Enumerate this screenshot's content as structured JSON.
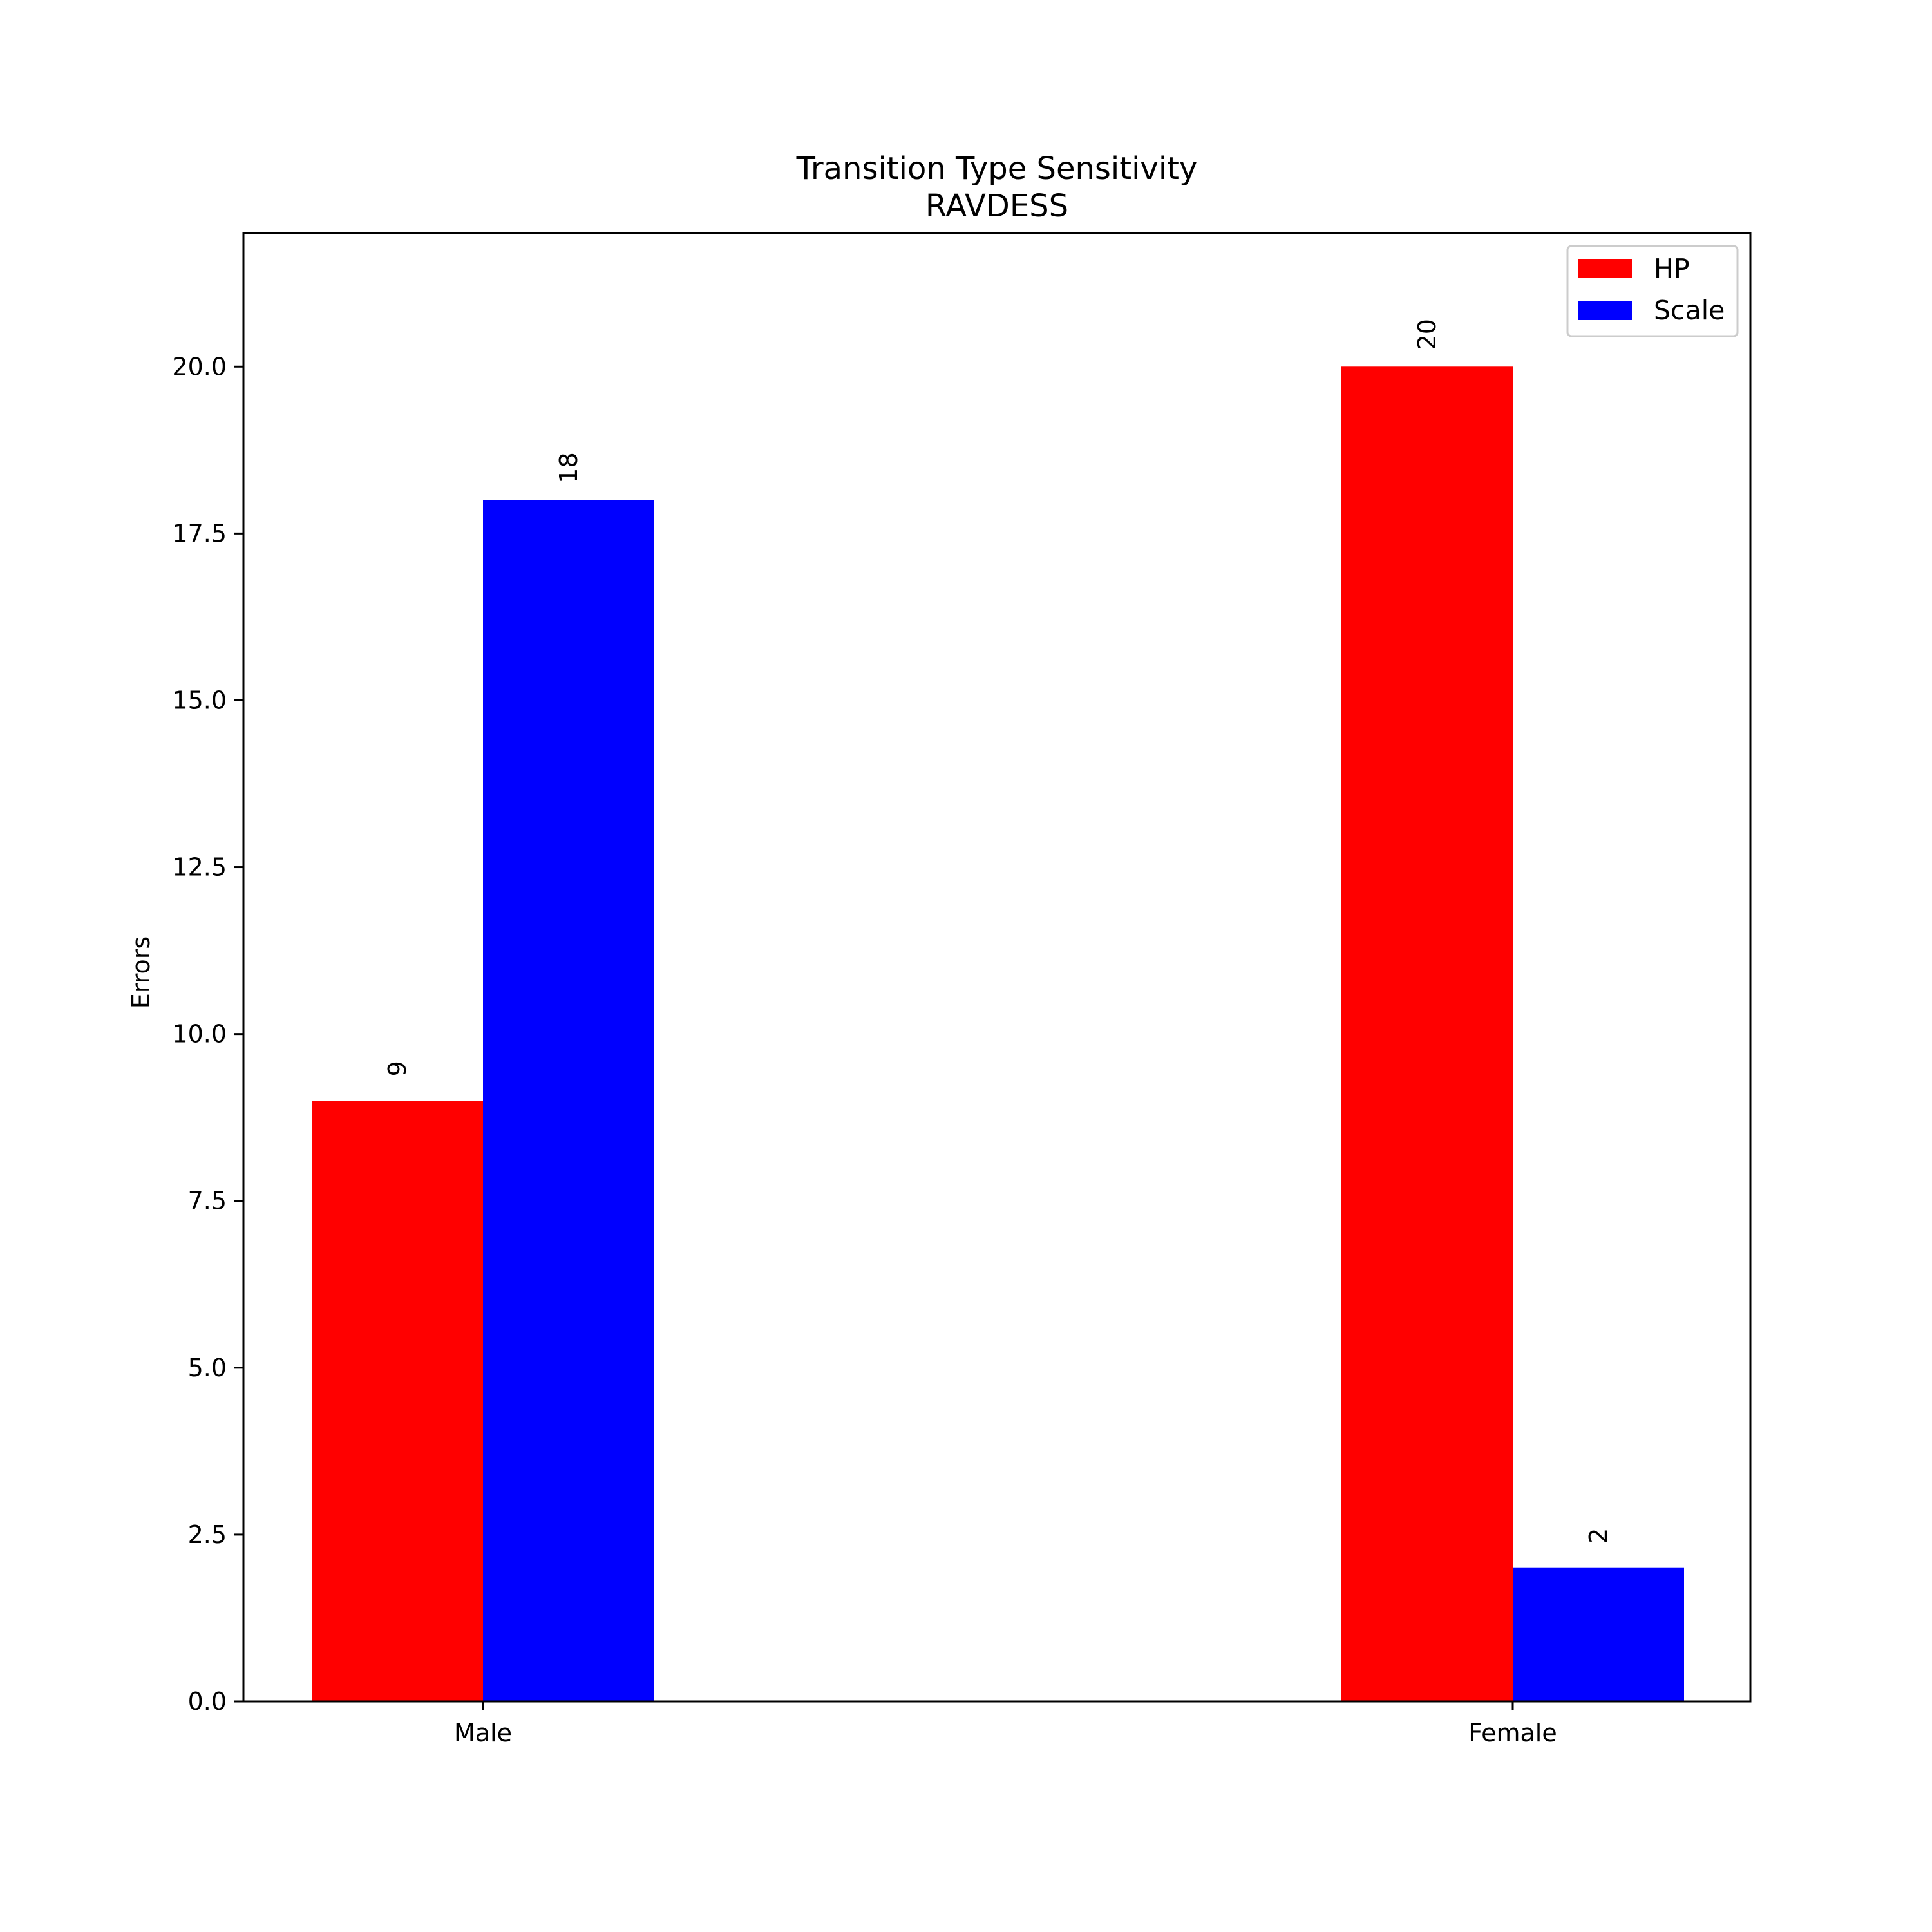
{
  "chart_data": {
    "type": "bar",
    "title": "Transition Type Sensitivity",
    "subtitle": "RAVDESS",
    "xlabel": "",
    "ylabel": "Errors",
    "categories": [
      "Male",
      "Female"
    ],
    "ylim": [
      0,
      22
    ],
    "yticks": [
      0,
      2.5,
      5,
      7.5,
      10,
      12.5,
      15,
      17.5,
      20
    ],
    "ytick_labels": [
      "0.0",
      "2.5",
      "5.0",
      "7.5",
      "10.0",
      "12.5",
      "15.0",
      "17.5",
      "20.0"
    ],
    "grid": false,
    "legend_position": "top-right",
    "series": [
      {
        "name": "HP",
        "color": "#ff0000",
        "values": [
          9,
          20
        ],
        "labels": [
          "9",
          "20"
        ]
      },
      {
        "name": "Scale",
        "color": "#0000ff",
        "values": [
          18,
          2
        ],
        "labels": [
          "18",
          "2"
        ]
      }
    ]
  }
}
